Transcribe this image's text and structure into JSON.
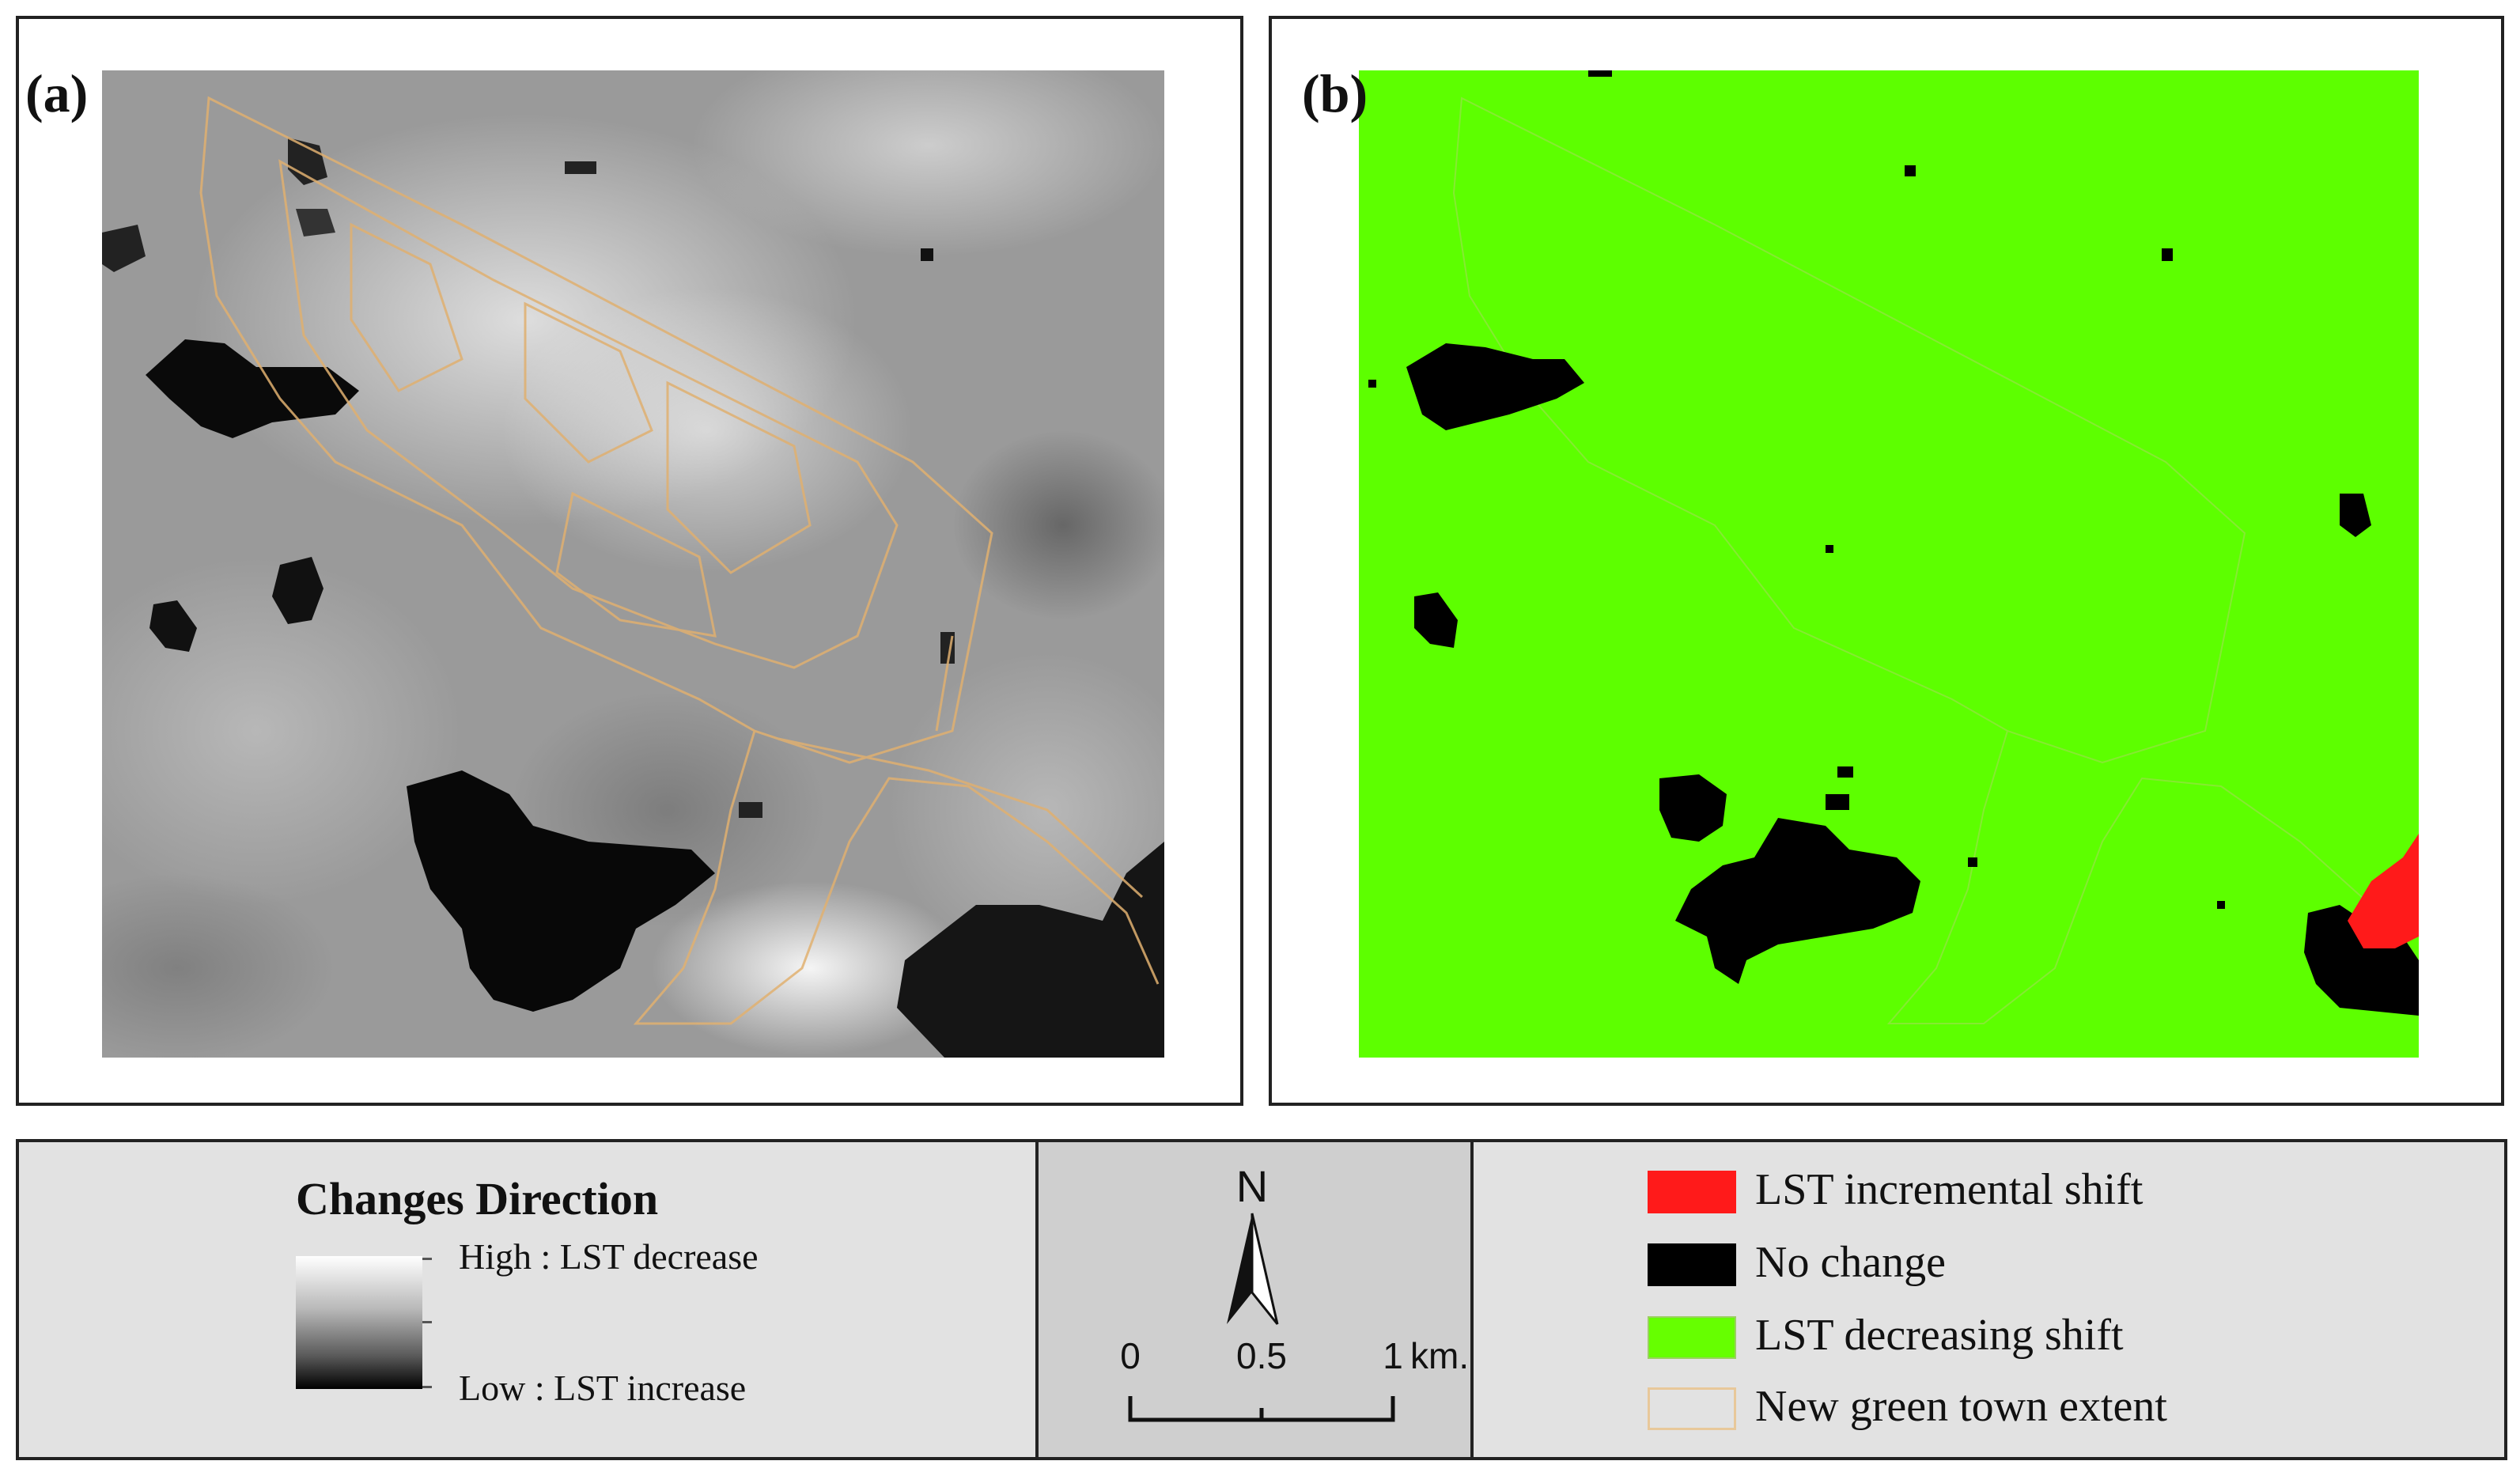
{
  "panels": {
    "a": {
      "label": "(a)"
    },
    "b": {
      "label": "(b)"
    }
  },
  "legend": {
    "gradient": {
      "title": "Changes Direction",
      "high_label": "High : LST decrease",
      "low_label": "Low : LST increase"
    },
    "north": {
      "letter": "N"
    },
    "scale": {
      "ticks": [
        "0",
        "0.5",
        "1"
      ],
      "unit": "km."
    },
    "classes": [
      {
        "label": "LST incremental shift",
        "color": "#ff1a1a"
      },
      {
        "label": "No change",
        "color": "#000000"
      },
      {
        "label": "LST decreasing shift",
        "color": "#66ff00"
      },
      {
        "label": "New green town extent",
        "color": "#e8c89a"
      }
    ]
  },
  "colors": {
    "green": "#5dff00",
    "red": "#ff1a1a",
    "black": "#000000",
    "outline": "#e0b070"
  }
}
